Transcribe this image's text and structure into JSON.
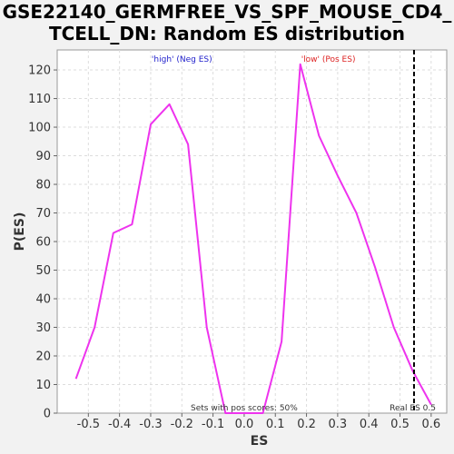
{
  "title_line1": "GSE22140_GERMFREE_VS_SPF_MOUSE_CD4_",
  "title_line2": "TCELL_DN: Random ES distribution",
  "chart_data": {
    "type": "line",
    "title": "GSE22140_GERMFREE_VS_SPF_MOUSE_CD4_TCELL_DN: Random ES distribution",
    "xlabel": "ES",
    "ylabel": "P(ES)",
    "xlim": [
      -0.6,
      0.65
    ],
    "ylim": [
      0,
      127
    ],
    "xticks": [
      "-0.5",
      "-0.4",
      "-0.3",
      "-0.2",
      "-0.1",
      "0.0",
      "0.1",
      "0.2",
      "0.3",
      "0.4",
      "0.5",
      "0.6"
    ],
    "yticks": [
      "0",
      "10",
      "20",
      "30",
      "40",
      "50",
      "60",
      "70",
      "80",
      "90",
      "100",
      "110",
      "120"
    ],
    "grid": true,
    "line_color": "#ee33ee",
    "series": [
      {
        "x": [
          -0.54,
          -0.48,
          -0.42,
          -0.36,
          -0.3,
          -0.24,
          -0.18,
          -0.12,
          -0.06,
          0.0,
          0.06,
          0.12,
          0.18,
          0.24,
          0.3,
          0.36,
          0.42,
          0.48,
          0.54,
          0.6
        ],
        "y": [
          12,
          30,
          63,
          66,
          101,
          108,
          94,
          30,
          0,
          0,
          0,
          25,
          122,
          97,
          83,
          70,
          51,
          30,
          15,
          3
        ]
      }
    ],
    "vline": {
      "x": 0.545,
      "label": "Real ES 0.5",
      "style": "dashed",
      "color": "#000000"
    },
    "annotations": {
      "neg_label": "'high' (Neg ES)",
      "neg_color": "#2222cc",
      "pos_label": "'low' (Pos ES)",
      "pos_color": "#dd2222",
      "bottom_label": "Sets with pos scores: 50%"
    }
  }
}
